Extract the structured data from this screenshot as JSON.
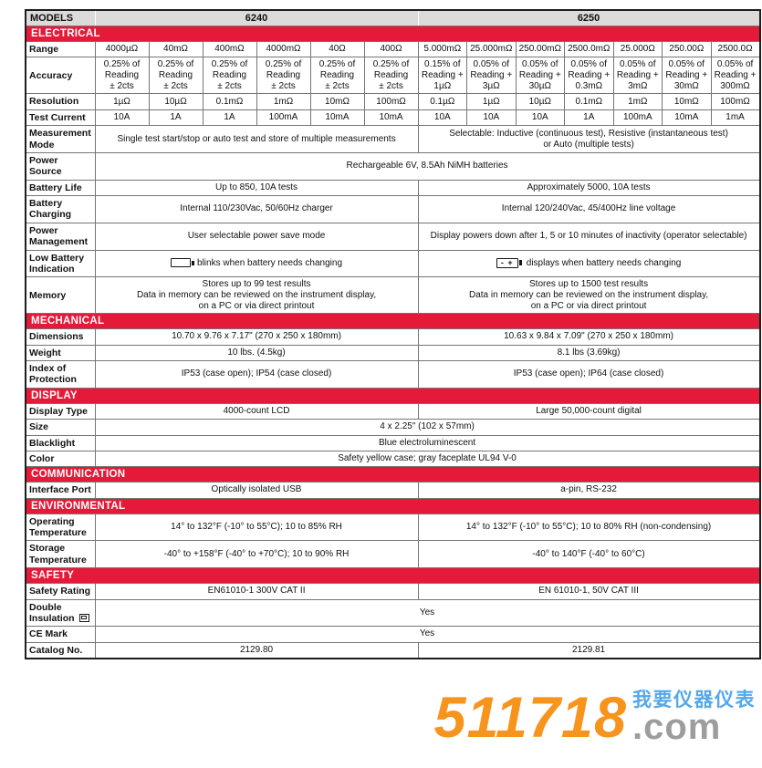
{
  "colors": {
    "section_red": "#E41A38",
    "header_gray": "#DDDBD9",
    "grid_line": "#757575",
    "watermark_orange": "#F7941E",
    "watermark_gray": "#9D9D9D",
    "watermark_blue": "#55A8E9"
  },
  "table": {
    "header": {
      "label": "MODELS",
      "model_a": "6240",
      "model_b": "6250"
    },
    "colspans": {
      "a": 6,
      "b": 7
    },
    "rows": [
      {
        "type": "section",
        "label": "ELECTRICAL"
      },
      {
        "type": "data",
        "label": "Range",
        "a": [
          "4000µΩ",
          "40mΩ",
          "400mΩ",
          "4000mΩ",
          "40Ω",
          "400Ω"
        ],
        "b": [
          "5.000mΩ",
          "25.000mΩ",
          "250.00mΩ",
          "2500.0mΩ",
          "25.000Ω",
          "250.00Ω",
          "2500.0Ω"
        ]
      },
      {
        "type": "data",
        "label": "Accuracy",
        "a": [
          "0.25% of\nReading\n± 2cts",
          "0.25% of\nReading\n± 2cts",
          "0.25% of\nReading\n± 2cts",
          "0.25% of\nReading\n± 2cts",
          "0.25% of\nReading\n± 2cts",
          "0.25% of\nReading\n± 2cts"
        ],
        "b": [
          "0.15% of\nReading +\n1µΩ",
          "0.05% of\nReading +\n3µΩ",
          "0.05% of\nReading +\n30µΩ",
          "0.05% of\nReading +\n0.3mΩ",
          "0.05% of\nReading +\n3mΩ",
          "0.05% of\nReading +\n30mΩ",
          "0.05% of\nReading +\n300mΩ"
        ]
      },
      {
        "type": "data",
        "label": "Resolution",
        "a": [
          "1µΩ",
          "10µΩ",
          "0.1mΩ",
          "1mΩ",
          "10mΩ",
          "100mΩ"
        ],
        "b": [
          "0.1µΩ",
          "1µΩ",
          "10µΩ",
          "0.1mΩ",
          "1mΩ",
          "10mΩ",
          "100mΩ"
        ]
      },
      {
        "type": "data",
        "label": "Test Current",
        "a": [
          "10A",
          "1A",
          "1A",
          "100mA",
          "10mA",
          "10mA"
        ],
        "b": [
          "10A",
          "10A",
          "10A",
          "1A",
          "100mA",
          "10mA",
          "1mA"
        ]
      },
      {
        "type": "data",
        "label": "Measurement\nMode",
        "a": "Single test start/stop or auto test and store of multiple measurements",
        "b": "Selectable: Inductive (continuous test), Resistive (instantaneous test)\nor Auto (multiple tests)"
      },
      {
        "type": "data",
        "label": "Power Source",
        "full": "Rechargeable 6V, 8.5Ah NiMH batteries"
      },
      {
        "type": "data",
        "label": "Battery Life",
        "a": "Up to 850, 10A tests",
        "b": "Approximately 5000, 10A tests"
      },
      {
        "type": "data",
        "label": "Battery\nCharging",
        "a": "Internal 110/230Vac, 50/60Hz charger",
        "b": "Internal 120/240Vac, 45/400Hz line voltage"
      },
      {
        "type": "data",
        "label": "Power\nManagement",
        "a": "User selectable power save mode",
        "b": "Display powers down after 1, 5 or 10 minutes of inactivity (operator selectable)"
      },
      {
        "type": "data",
        "label": "Low Battery\nIndication",
        "a": {
          "icon": "battery-outline-icon",
          "text": "blinks when battery needs changing"
        },
        "b": {
          "icon": "battery-polarity-icon",
          "icon_text": "- +",
          "text": "displays when battery needs changing"
        }
      },
      {
        "type": "data",
        "label": "Memory",
        "a": "Stores up to 99 test results\nData in memory can be reviewed on the instrument display,\non a PC or via direct printout",
        "b": "Stores up to 1500 test results\nData in memory can be reviewed on the instrument display,\non a PC or via direct printout"
      },
      {
        "type": "section",
        "label": "MECHANICAL"
      },
      {
        "type": "data",
        "label": "Dimensions",
        "a": "10.70 x 9.76 x 7.17\" (270 x 250 x 180mm)",
        "b": "10.63 x 9.84 x 7.09\" (270 x 250 x 180mm)"
      },
      {
        "type": "data",
        "label": "Weight",
        "a": "10 lbs. (4.5kg)",
        "b": "8.1 lbs (3.69kg)"
      },
      {
        "type": "data",
        "label": "Index of\nProtection",
        "a": "IP53 (case open); IP54 (case closed)",
        "b": "IP53 (case open); IP64 (case closed)"
      },
      {
        "type": "section",
        "label": "DISPLAY"
      },
      {
        "type": "data",
        "label": "Display Type",
        "a": "4000-count LCD",
        "b": "Large 50,000-count digital"
      },
      {
        "type": "data",
        "label": "Size",
        "full": "4 x 2.25\" (102 x 57mm)"
      },
      {
        "type": "data",
        "label": "Blacklight",
        "full": "Blue electroluminescent"
      },
      {
        "type": "data",
        "label": "Color",
        "full": "Safety yellow case; gray faceplate UL94 V-0"
      },
      {
        "type": "section",
        "label": "COMMUNICATION"
      },
      {
        "type": "data",
        "label": "Interface Port",
        "a": "Optically isolated USB",
        "b": "a-pin, RS-232"
      },
      {
        "type": "section",
        "label": "ENVIRONMENTAL"
      },
      {
        "type": "data",
        "label": "Operating\nTemperature",
        "a": "14° to 132°F (-10° to 55°C); 10 to 85% RH",
        "b": "14° to 132°F (-10° to 55°C); 10 to 80% RH (non-condensing)"
      },
      {
        "type": "data",
        "label": "Storage\nTemperature",
        "a": "-40° to +158°F (-40° to +70°C); 10 to 90% RH",
        "b": "-40° to 140°F (-40° to 60°C)"
      },
      {
        "type": "section",
        "label": "SAFETY"
      },
      {
        "type": "data",
        "label": "Safety Rating",
        "a": "EN61010-1 300V CAT II",
        "b": "EN 61010-1, 50V CAT III"
      },
      {
        "type": "data",
        "label": "Double\nInsulation",
        "label_icon": "double-insulation-icon",
        "full": "Yes"
      },
      {
        "type": "data",
        "label": "CE Mark",
        "full": "Yes"
      },
      {
        "type": "data",
        "label": "Catalog No.",
        "a": "2129.80",
        "b": "2129.81"
      }
    ]
  },
  "watermark": {
    "number": "511718",
    "tld": ".com",
    "slogan": "我要仪器仪表"
  }
}
